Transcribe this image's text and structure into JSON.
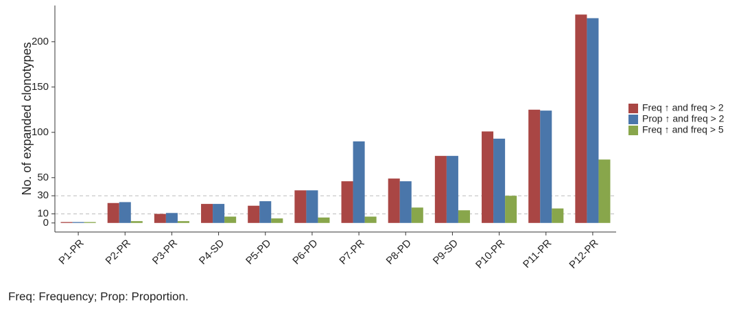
{
  "chart_data": {
    "type": "grouped_bar",
    "y_label": "No. of expanded clonotypes",
    "categories": [
      "P1-PR",
      "P2-PR",
      "P3-PR",
      "P4-SD",
      "P5-PD",
      "P6-PD",
      "P7-PR",
      "P8-PD",
      "P9-SD",
      "P10-PR",
      "P11-PR",
      "P12-PR"
    ],
    "series": [
      {
        "name": "Freq ↑  and freq > 2",
        "color": "#a94644",
        "values": [
          1,
          22,
          10,
          21,
          19,
          36,
          46,
          49,
          74,
          101,
          125,
          230
        ]
      },
      {
        "name": "Prop ↑  and freq > 2",
        "color": "#4a76aa",
        "values": [
          1,
          23,
          11,
          21,
          24,
          36,
          90,
          46,
          74,
          93,
          124,
          226
        ]
      },
      {
        "name": "Freq ↑  and freq > 5",
        "color": "#88a64b",
        "values": [
          1,
          2,
          2,
          7,
          5,
          6,
          7,
          17,
          14,
          30,
          16,
          70
        ]
      }
    ],
    "ylim": [
      -10,
      240
    ],
    "yticks": [
      0,
      10,
      30,
      50,
      100,
      150,
      200
    ],
    "reference_lines": [
      10,
      30
    ],
    "legend": "right",
    "footnote": "Freq: Frequency; Prop: Proportion."
  }
}
